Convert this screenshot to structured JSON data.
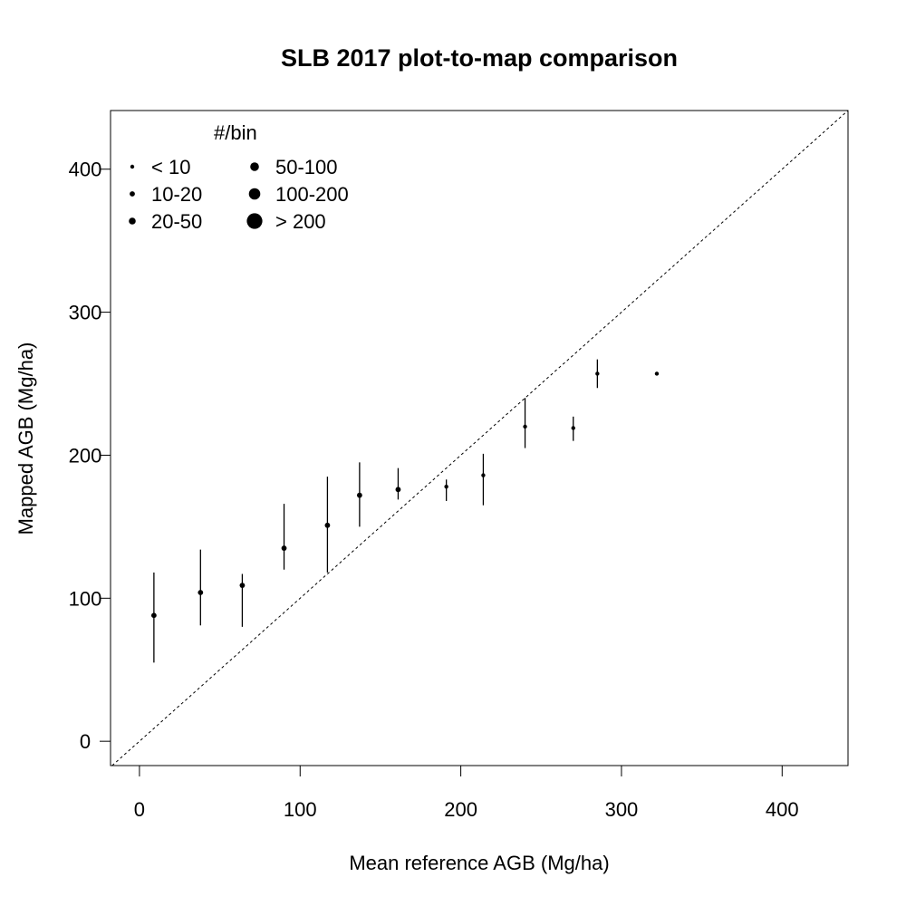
{
  "chart_data": {
    "type": "scatter",
    "title": "SLB 2017 plot-to-map comparison",
    "xlabel": "Mean reference AGB (Mg/ha)",
    "ylabel": "Mapped AGB (Mg/ha)",
    "xlim": [
      -18,
      441
    ],
    "ylim": [
      -17,
      441
    ],
    "xticks": [
      0,
      100,
      200,
      300,
      400
    ],
    "yticks": [
      0,
      100,
      200,
      300,
      400
    ],
    "grid": false,
    "reference_line": {
      "style": "dashed",
      "slope": 1,
      "intercept": 0
    },
    "legend": {
      "title": "#/bin",
      "position": "top-left",
      "entries": [
        {
          "label": "< 10",
          "size": 0
        },
        {
          "label": "10-20",
          "size": 1
        },
        {
          "label": "20-50",
          "size": 2
        },
        {
          "label": "50-100",
          "size": 3
        },
        {
          "label": "100-200",
          "size": 4
        },
        {
          "label": "> 200",
          "size": 5
        }
      ]
    },
    "points": [
      {
        "x": 9,
        "y": 88,
        "low": 55,
        "high": 118,
        "size": 1
      },
      {
        "x": 38,
        "y": 104,
        "low": 81,
        "high": 134,
        "size": 1
      },
      {
        "x": 64,
        "y": 109,
        "low": 80,
        "high": 117,
        "size": 1
      },
      {
        "x": 90,
        "y": 135,
        "low": 120,
        "high": 166,
        "size": 1
      },
      {
        "x": 117,
        "y": 151,
        "low": 118,
        "high": 185,
        "size": 1
      },
      {
        "x": 137,
        "y": 172,
        "low": 150,
        "high": 195,
        "size": 1
      },
      {
        "x": 161,
        "y": 176,
        "low": 169,
        "high": 191,
        "size": 1
      },
      {
        "x": 191,
        "y": 178,
        "low": 168,
        "high": 183,
        "size": 0
      },
      {
        "x": 214,
        "y": 186,
        "low": 165,
        "high": 201,
        "size": 0
      },
      {
        "x": 240,
        "y": 220,
        "low": 205,
        "high": 240,
        "size": 0
      },
      {
        "x": 270,
        "y": 219,
        "low": 210,
        "high": 227,
        "size": 0
      },
      {
        "x": 285,
        "y": 257,
        "low": 247,
        "high": 267,
        "size": 0
      },
      {
        "x": 322,
        "y": 257,
        "low": 257,
        "high": 257,
        "size": 0
      }
    ]
  }
}
